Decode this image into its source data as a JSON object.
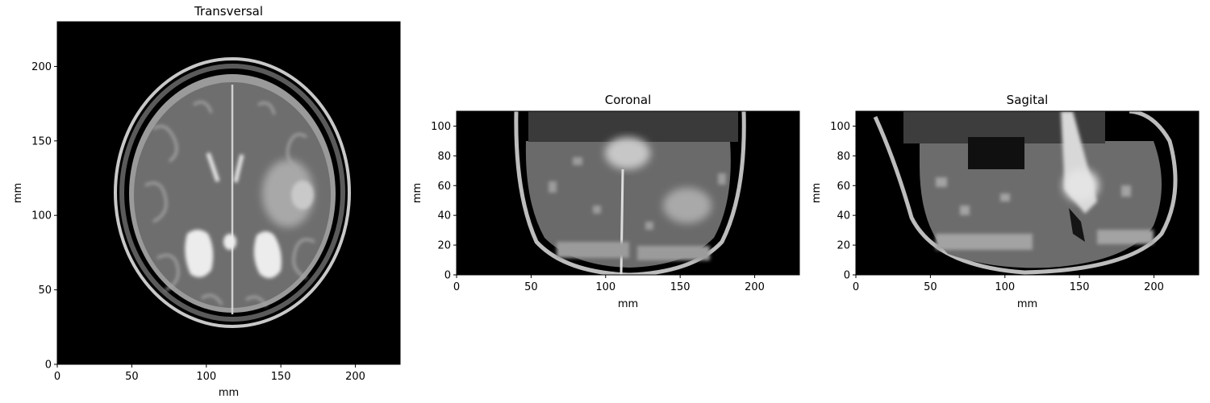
{
  "chart_data": [
    {
      "type": "heatmap",
      "title": "Transversal",
      "xlabel": "mm",
      "ylabel": "mm",
      "xlim": [
        0,
        230
      ],
      "ylim": [
        0,
        230
      ],
      "xticks": [
        0,
        50,
        100,
        150,
        200
      ],
      "yticks": [
        0,
        50,
        100,
        150,
        200
      ],
      "colormap": "gray"
    },
    {
      "type": "heatmap",
      "title": "Coronal",
      "xlabel": "mm",
      "ylabel": "mm",
      "xlim": [
        0,
        230
      ],
      "ylim": [
        0,
        110
      ],
      "xticks": [
        0,
        50,
        100,
        150,
        200
      ],
      "yticks": [
        0,
        20,
        40,
        60,
        80,
        100
      ],
      "colormap": "gray"
    },
    {
      "type": "heatmap",
      "title": "Sagital",
      "xlabel": "mm",
      "ylabel": "mm",
      "xlim": [
        0,
        230
      ],
      "ylim": [
        0,
        110
      ],
      "xticks": [
        0,
        50,
        100,
        150,
        200
      ],
      "yticks": [
        0,
        20,
        40,
        60,
        80,
        100
      ],
      "colormap": "gray"
    }
  ],
  "colors": {
    "background": "#000000",
    "tissue": "#7a7a7a",
    "fluid": "#e6e6e6",
    "axis": "#000000"
  }
}
